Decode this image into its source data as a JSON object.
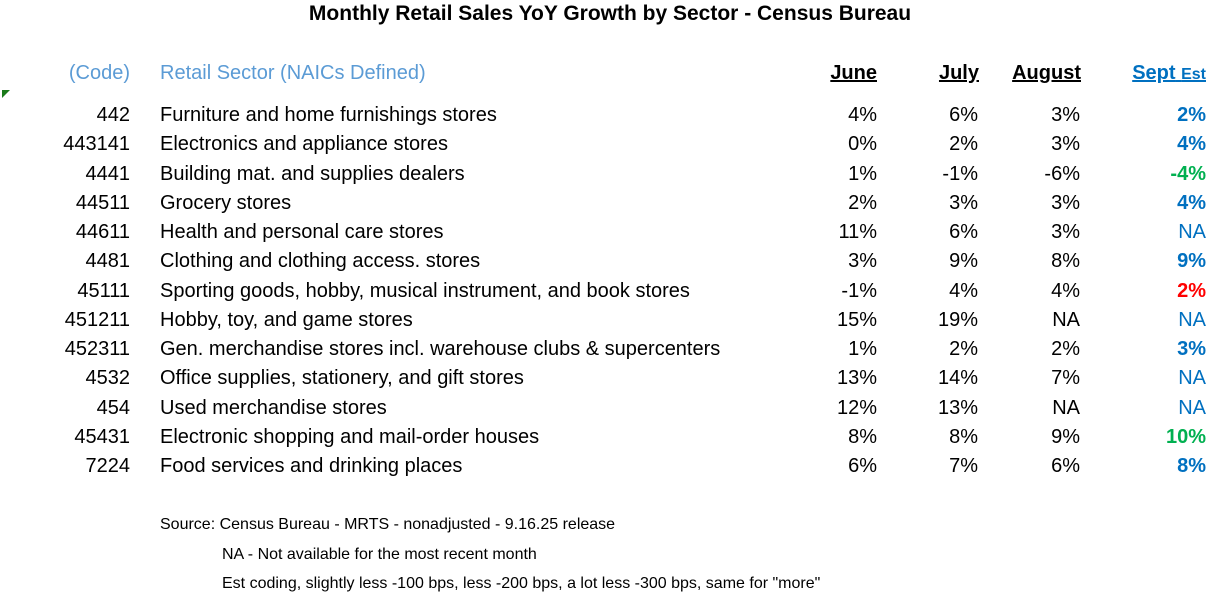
{
  "title": "Monthly Retail Sales YoY Growth by Sector - Census Bureau",
  "headers": {
    "code": "(Code)",
    "sector": "Retail Sector (NAICs Defined)",
    "june": "June",
    "july": "July",
    "august": "August",
    "sept": "Sept",
    "sept_suffix": "Est"
  },
  "colors": {
    "header_blue": "#5b9bd5",
    "sept_blue": "#0070c0",
    "green": "#00b050",
    "red": "#ff0000"
  },
  "rows": [
    {
      "code": "442",
      "sector": "Furniture and home furnishings stores",
      "june": "4%",
      "july": "6%",
      "august": "3%",
      "sept": "2%",
      "sept_style": "blue"
    },
    {
      "code": "443141",
      "sector": "Electronics and appliance stores",
      "june": "0%",
      "july": "2%",
      "august": "3%",
      "sept": "4%",
      "sept_style": "blue"
    },
    {
      "code": "4441",
      "sector": "Building mat. and supplies dealers",
      "june": "1%",
      "july": "-1%",
      "august": "-6%",
      "sept": "-4%",
      "sept_style": "green"
    },
    {
      "code": "44511",
      "sector": "Grocery stores",
      "june": "2%",
      "july": "3%",
      "august": "3%",
      "sept": "4%",
      "sept_style": "blue"
    },
    {
      "code": "44611",
      "sector": "Health and personal care stores",
      "june": "11%",
      "july": "6%",
      "august": "3%",
      "sept": "NA",
      "sept_style": "na"
    },
    {
      "code": "4481",
      "sector": "Clothing and clothing access. stores",
      "june": "3%",
      "july": "9%",
      "august": "8%",
      "sept": "9%",
      "sept_style": "blue"
    },
    {
      "code": "45111",
      "sector": "Sporting goods, hobby, musical instrument, and book stores",
      "june": "-1%",
      "july": "4%",
      "august": "4%",
      "sept": "2%",
      "sept_style": "red"
    },
    {
      "code": "451211",
      "sector": "Hobby, toy, and game stores",
      "june": "15%",
      "july": "19%",
      "august": "NA",
      "sept": "NA",
      "sept_style": "na"
    },
    {
      "code": "452311",
      "sector": "Gen. merchandise stores incl. warehouse clubs & supercenters",
      "june": "1%",
      "july": "2%",
      "august": "2%",
      "sept": "3%",
      "sept_style": "blue"
    },
    {
      "code": "4532",
      "sector": "Office supplies, stationery, and gift stores",
      "june": "13%",
      "july": "14%",
      "august": "7%",
      "sept": "NA",
      "sept_style": "na"
    },
    {
      "code": "454",
      "sector": "Used merchandise stores",
      "june": "12%",
      "july": "13%",
      "august": "NA",
      "sept": "NA",
      "sept_style": "na"
    },
    {
      "code": "45431",
      "sector": "Electronic shopping and mail-order houses",
      "june": "8%",
      "july": "8%",
      "august": "9%",
      "sept": "10%",
      "sept_style": "green"
    },
    {
      "code": "7224",
      "sector": "Food services and drinking places",
      "june": "6%",
      "july": "7%",
      "august": "6%",
      "sept": "8%",
      "sept_style": "blue"
    }
  ],
  "footer": {
    "source": "Source: Census Bureau - MRTS - nonadjusted - 9.16.25 release",
    "na_note": "NA - Not available for the most recent month",
    "est_note": "Est coding, slightly less -100 bps, less -200 bps, a lot less -300 bps, same for \"more\""
  }
}
